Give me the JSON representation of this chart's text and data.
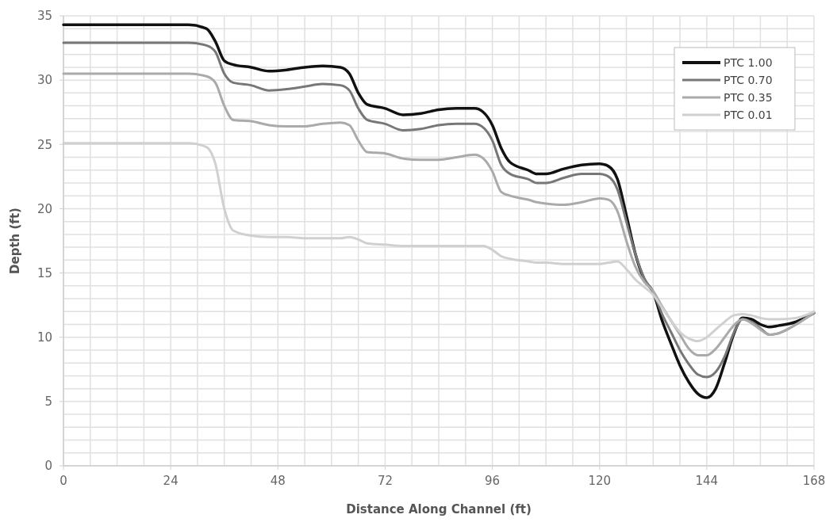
{
  "chart_data": {
    "type": "line",
    "xlabel": "Distance Along Channel (ft)",
    "ylabel": "Depth (ft)",
    "xlim": [
      0,
      168
    ],
    "xticks": [
      0,
      24,
      48,
      72,
      96,
      120,
      144,
      168
    ],
    "ylim": [
      0,
      35
    ],
    "yticks": [
      0,
      5,
      10,
      15,
      20,
      25,
      30,
      35
    ],
    "grid": true,
    "legend": "top right",
    "x": [
      0,
      28,
      32,
      34,
      36,
      38,
      42,
      46,
      50,
      54,
      58,
      62,
      64,
      66,
      68,
      72,
      76,
      80,
      84,
      88,
      92,
      94,
      96,
      98,
      100,
      104,
      106,
      108,
      112,
      116,
      120,
      122,
      124,
      126,
      128,
      130,
      132,
      134,
      136,
      138,
      140,
      142,
      144,
      146,
      148,
      150,
      152,
      154,
      156,
      158,
      160,
      164,
      168
    ],
    "series": [
      {
        "name": "PTC 1.00",
        "color": "#111111",
        "values": [
          34.3,
          34.3,
          34.0,
          33.0,
          31.5,
          31.2,
          31.0,
          30.7,
          30.8,
          31.0,
          31.1,
          31.0,
          30.5,
          29.0,
          28.1,
          27.8,
          27.3,
          27.4,
          27.7,
          27.8,
          27.8,
          27.5,
          26.5,
          24.7,
          23.6,
          23.0,
          22.7,
          22.7,
          23.1,
          23.4,
          23.5,
          23.3,
          22.3,
          19.5,
          16.5,
          14.5,
          13.5,
          11.3,
          9.5,
          7.8,
          6.5,
          5.6,
          5.3,
          6.0,
          8.0,
          10.2,
          11.5,
          11.4,
          11.0,
          10.8,
          10.9,
          11.2,
          11.9
        ]
      },
      {
        "name": "PTC 0.70",
        "color": "#777777",
        "values": [
          32.9,
          32.9,
          32.7,
          32.2,
          30.5,
          29.8,
          29.6,
          29.2,
          29.3,
          29.5,
          29.7,
          29.6,
          29.2,
          27.8,
          26.9,
          26.6,
          26.1,
          26.2,
          26.5,
          26.6,
          26.6,
          26.3,
          25.3,
          23.4,
          22.7,
          22.3,
          22.0,
          22.0,
          22.4,
          22.7,
          22.7,
          22.5,
          21.5,
          19.0,
          16.5,
          14.6,
          13.5,
          11.8,
          10.4,
          9.0,
          7.9,
          7.1,
          6.9,
          7.3,
          8.5,
          10.3,
          11.4,
          11.2,
          10.7,
          10.2,
          10.3,
          11.0,
          11.9
        ]
      },
      {
        "name": "PTC 0.35",
        "color": "#aaaaaa",
        "values": [
          30.5,
          30.5,
          30.3,
          29.8,
          28.0,
          26.9,
          26.8,
          26.5,
          26.4,
          26.4,
          26.6,
          26.7,
          26.5,
          25.3,
          24.4,
          24.3,
          23.9,
          23.8,
          23.8,
          24.0,
          24.2,
          23.9,
          22.9,
          21.3,
          21.0,
          20.7,
          20.5,
          20.4,
          20.3,
          20.5,
          20.8,
          20.7,
          19.8,
          17.5,
          15.5,
          14.3,
          13.6,
          12.4,
          11.3,
          10.2,
          9.1,
          8.6,
          8.6,
          9.1,
          10.0,
          10.9,
          11.4,
          11.1,
          10.6,
          10.2,
          10.3,
          11.0,
          11.9
        ]
      },
      {
        "name": "PTC 0.01",
        "color": "#d0d0d0",
        "values": [
          25.1,
          25.1,
          24.8,
          23.5,
          20.0,
          18.3,
          17.9,
          17.8,
          17.8,
          17.7,
          17.7,
          17.7,
          17.8,
          17.6,
          17.3,
          17.2,
          17.1,
          17.1,
          17.1,
          17.1,
          17.1,
          17.1,
          16.8,
          16.3,
          16.1,
          15.9,
          15.8,
          15.8,
          15.7,
          15.7,
          15.7,
          15.8,
          15.9,
          15.3,
          14.5,
          13.9,
          13.3,
          12.3,
          11.3,
          10.4,
          9.9,
          9.7,
          10.0,
          10.6,
          11.2,
          11.7,
          11.8,
          11.7,
          11.5,
          11.4,
          11.4,
          11.5,
          12.0
        ]
      }
    ]
  }
}
